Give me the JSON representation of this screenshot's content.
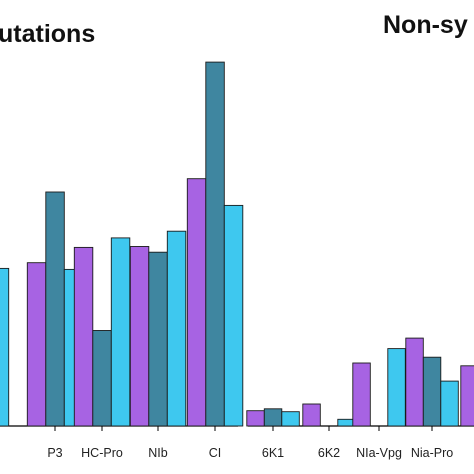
{
  "colors": {
    "purple": "#a763e3",
    "teal": "#3f86a0",
    "cyan": "#3ec8ef",
    "axis": "#000000"
  },
  "chart_data": [
    {
      "type": "bar",
      "title": "utations",
      "categories": [
        "",
        "P3",
        "HC-Pro",
        "NIb",
        "CI"
      ],
      "series": [
        {
          "values": [
            null,
            171,
            187,
            188,
            259
          ]
        },
        {
          "values": [
            null,
            245,
            100,
            182,
            381
          ]
        },
        {
          "values": [
            165,
            164,
            197,
            204,
            231
          ]
        }
      ],
      "ylim": [
        0,
        400
      ]
    },
    {
      "type": "bar",
      "title": "Non-sy",
      "categories": [
        "6K1",
        "6K2",
        "NIa-Vpg",
        "Nia-Pro",
        ""
      ],
      "series": [
        {
          "values": [
            16,
            23,
            66,
            92,
            63
          ]
        },
        {
          "values": [
            18,
            0,
            0,
            72,
            32
          ]
        },
        {
          "values": [
            15,
            7,
            81,
            47,
            null
          ]
        }
      ],
      "ylim": [
        0,
        400
      ]
    }
  ]
}
